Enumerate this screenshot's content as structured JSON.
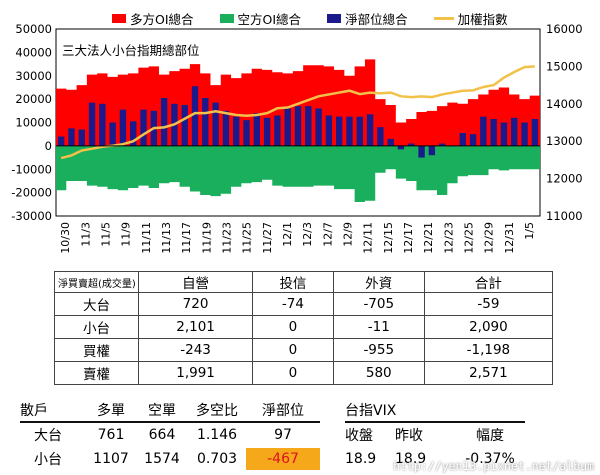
{
  "chart_data": {
    "type": "bar",
    "title": "三大法人小台指期總部位",
    "legend": [
      "多方OI總合",
      "空方OI總合",
      "淨部位總合",
      "加權指數"
    ],
    "legend_position": "top",
    "series_colors": {
      "long": "#ff0000",
      "short": "#1aaf5d",
      "net": "#1a1a8c",
      "index": "#f2c14a"
    },
    "y_left": {
      "min": -30000,
      "max": 50000,
      "step": 10000,
      "ticks": [
        "-30000",
        "-20000",
        "-10000",
        "0",
        "10000",
        "20000",
        "30000",
        "40000",
        "50000"
      ]
    },
    "y_right": {
      "min": 11000,
      "max": 16000,
      "step": 1000,
      "ticks": [
        "11000",
        "12000",
        "13000",
        "14000",
        "15000",
        "16000"
      ]
    },
    "x_tick_labels": [
      "10/30",
      "11/3",
      "11/5",
      "11/9",
      "11/11",
      "11/13",
      "11/17",
      "11/19",
      "11/23",
      "11/25",
      "11/27",
      "12/1",
      "12/3",
      "12/7",
      "12/9",
      "12/11",
      "12/15",
      "12/17",
      "12/21",
      "12/23",
      "12/25",
      "12/29",
      "12/31",
      "1/5"
    ],
    "series": [
      {
        "name": "多方OI總合",
        "values": [
          24500,
          24000,
          26000,
          30500,
          31000,
          29500,
          30500,
          31000,
          33500,
          34000,
          30500,
          32000,
          33000,
          35000,
          31000,
          26000,
          30500,
          29000,
          31000,
          33000,
          32500,
          31500,
          31000,
          32000,
          34500,
          34500,
          34000,
          32500,
          30000,
          34000,
          37000,
          20000,
          17500,
          10000,
          11500,
          14500,
          15000,
          17000,
          18500,
          18000,
          20000,
          22000,
          24000,
          25000,
          22000,
          20000,
          21500
        ]
      },
      {
        "name": "空方OI總合",
        "values": [
          -19000,
          -15000,
          -15000,
          -17000,
          -17500,
          -18500,
          -19000,
          -18000,
          -17000,
          -18000,
          -16000,
          -15500,
          -17500,
          -19500,
          -21000,
          -21500,
          -20500,
          -17500,
          -16000,
          -15500,
          -14500,
          -17000,
          -17500,
          -17500,
          -17500,
          -17000,
          -17000,
          -18500,
          -18500,
          -24000,
          -23500,
          -11500,
          -10000,
          -14000,
          -15000,
          -19000,
          -19000,
          -21000,
          -16000,
          -13000,
          -12500,
          -12500,
          -10000,
          -10500,
          -10000,
          -10000,
          -10000
        ]
      },
      {
        "name": "淨部位總合",
        "values": [
          4000,
          7500,
          7000,
          18500,
          18000,
          10000,
          15500,
          10500,
          15500,
          15000,
          20500,
          18000,
          17500,
          25500,
          20500,
          18500,
          15000,
          12500,
          11000,
          14000,
          12000,
          13000,
          16000,
          17000,
          17000,
          16000,
          13000,
          12500,
          12500,
          12500,
          13500,
          8000,
          3000,
          -1500,
          1000,
          -5000,
          -4000,
          1000,
          0,
          5500,
          5000,
          12500,
          11500,
          10000,
          12000,
          10000,
          11500
        ]
      },
      {
        "name": "加權指數",
        "values": [
          12550,
          12620,
          12750,
          12800,
          12850,
          12880,
          12920,
          13000,
          13180,
          13350,
          13370,
          13450,
          13600,
          13750,
          13750,
          13800,
          13750,
          13700,
          13680,
          13700,
          13750,
          13880,
          13900,
          14000,
          14100,
          14200,
          14250,
          14300,
          14350,
          14260,
          14300,
          14280,
          14300,
          14200,
          14180,
          14200,
          14180,
          14250,
          14300,
          14350,
          14360,
          14450,
          14500,
          14700,
          14850,
          14980,
          15000
        ]
      }
    ]
  },
  "inst_table": {
    "corner": "淨買賣超(成交量)",
    "headers": [
      "自營",
      "投信",
      "外資",
      "合計"
    ],
    "rows": [
      {
        "label": "大台",
        "cells": [
          "720",
          "-74",
          "-705",
          "-59"
        ]
      },
      {
        "label": "小台",
        "cells": [
          "2,101",
          "0",
          "-11",
          "2,090"
        ]
      },
      {
        "label": "買權",
        "cells": [
          "-243",
          "0",
          "-955",
          "-1,198"
        ]
      },
      {
        "label": "賣權",
        "cells": [
          "1,991",
          "0",
          "580",
          "2,571"
        ]
      }
    ]
  },
  "retail": {
    "headers": [
      "散戶",
      "多單",
      "空單",
      "多空比",
      "淨部位"
    ],
    "rows": [
      {
        "label": "大台",
        "cells": [
          "761",
          "664",
          "1.146",
          "97"
        ]
      },
      {
        "label": "小台",
        "cells": [
          "1107",
          "1574",
          "0.703",
          "-467"
        ]
      }
    ]
  },
  "vix": {
    "title": "台指VIX",
    "headers": [
      "收盤",
      "昨收",
      "幅度"
    ],
    "values": [
      "18.9",
      "18.9",
      "-0.37%"
    ]
  },
  "watermark": "http://yen13.pixnet.net/album"
}
